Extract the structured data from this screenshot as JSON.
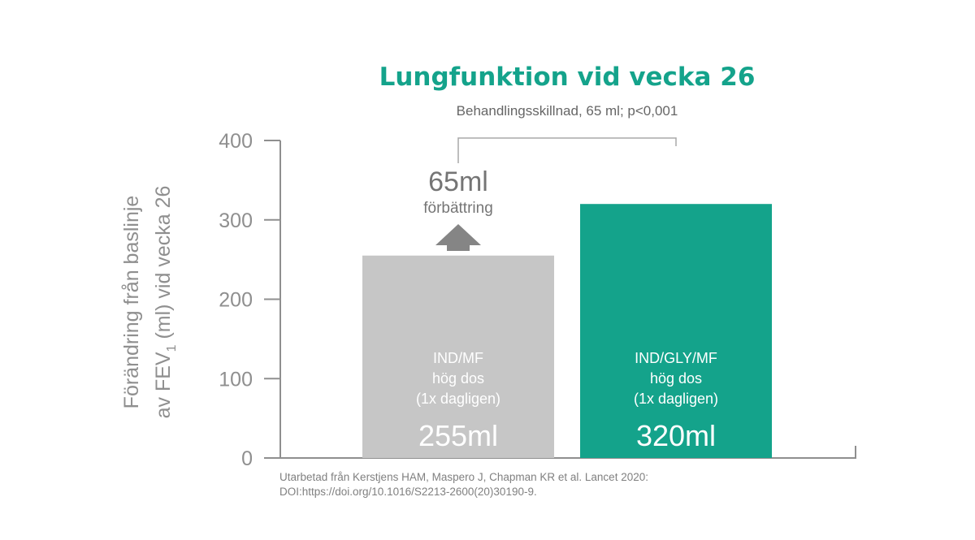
{
  "chart_data": {
    "type": "bar",
    "title": "Lungfunktion vid vecka 26",
    "subtitle": "Behandlingsskillnad, 65 ml; p<0,001",
    "ylabel": {
      "line1": "Förändring från baslinje",
      "line2_pre": "av FEV",
      "line2_sub": "1",
      "line2_post": " (ml) vid vecka 26"
    },
    "ylim": [
      0,
      400
    ],
    "yticks": [
      0,
      100,
      200,
      300,
      400
    ],
    "categories": [
      "IND/MF",
      "IND/GLY/MF"
    ],
    "values": [
      255,
      320
    ],
    "bars": [
      {
        "name_line1": "IND/MF",
        "name_line2": "hög dos",
        "name_line3": "(1x dagligen)",
        "value_label": "255ml",
        "color": "#c6c6c6"
      },
      {
        "name_line1": "IND/GLY/MF",
        "name_line2": "hög dos",
        "name_line3": "(1x dagligen)",
        "value_label": "320ml",
        "color": "#14a38b"
      }
    ],
    "annotation": {
      "value": "65ml",
      "text": "förbättring"
    },
    "grid": false,
    "legend": "none"
  },
  "source": {
    "line1": "Utarbetad från Kerstjens HAM, Maspero J, Chapman KR et al. Lancet 2020:",
    "line2": "DOI:https://doi.org/10.1016/S2213-2600(20)30190-9."
  },
  "colors": {
    "accent": "#14a38b",
    "axis": "#8f8f8f",
    "bar_grey": "#c6c6c6",
    "arrow": "#858585"
  }
}
